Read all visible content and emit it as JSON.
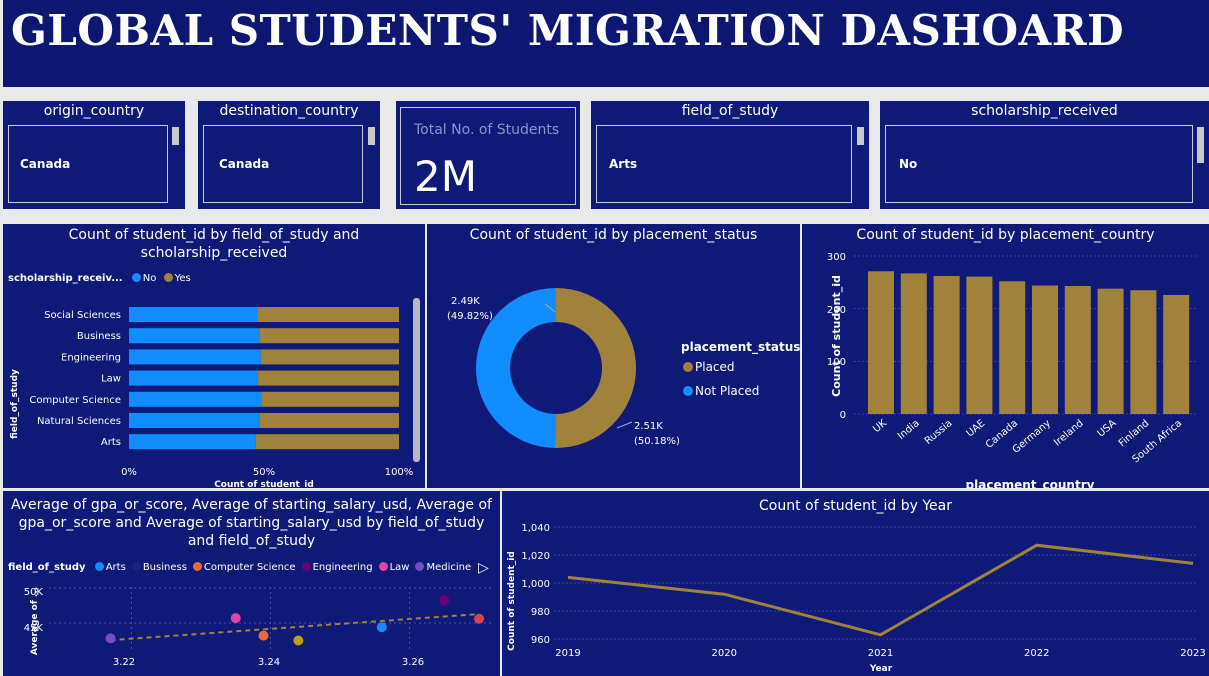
{
  "title": "GLOBAL STUDENTS' MIGRATION DASHOARD",
  "colors": {
    "blue": "#118dff",
    "gold": "#a1823a",
    "panel": "#0f1a78",
    "navy_dot": "#1a237e",
    "orange": "#e66c37",
    "purple": "#6b007b",
    "pink": "#e044a7",
    "violet": "#744ec2",
    "yellow": "#b9a10c",
    "red": "#d64550"
  },
  "slicers": {
    "origin": {
      "title": "origin_country",
      "value": "Canada"
    },
    "destination": {
      "title": "destination_country",
      "value": "Canada"
    },
    "field": {
      "title": "field_of_study",
      "value": "Arts"
    },
    "scholarship": {
      "title": "scholarship_received",
      "value": "No"
    }
  },
  "kpi": {
    "label": "Total No. of Students",
    "value": "2M"
  },
  "bar_chart": {
    "title_line1": "Count of student_id by field_of_study and",
    "title_line2": "scholarship_received",
    "legend_title": "scholarship_receiv...",
    "legend_no": "No",
    "legend_yes": "Yes",
    "ylabel": "field_of_study",
    "xlabel": "Count of student_id",
    "xticks": [
      "0%",
      "50%",
      "100%"
    ]
  },
  "donut_chart": {
    "title": "Count of student_id by placement_status",
    "legend_title": "placement_status",
    "legend_placed": "Placed",
    "legend_not_placed": "Not Placed",
    "label_not_placed_value": "2.49K",
    "label_not_placed_pct": "(49.82%)",
    "label_placed_value": "2.51K",
    "label_placed_pct": "(50.18%)"
  },
  "country_chart": {
    "title": "Count of student_id by placement_country",
    "ylabel": "Count of student_id",
    "xlabel": "placement_country",
    "yticks": [
      "0",
      "100",
      "200",
      "300"
    ]
  },
  "scatter_chart": {
    "title_line1": "Average of gpa_or_score, Average of starting_salary_usd, Average of",
    "title_line2": "gpa_or_score and Average of starting_salary_usd by field_of_study",
    "title_line3": "and field_of_study",
    "legend_title": "field_of_study",
    "legend": [
      "Arts",
      "Business",
      "Computer Science",
      "Engineering",
      "Law",
      "Medicine"
    ],
    "ylabel": "Average of ...",
    "yticks": [
      "50K",
      "45K"
    ],
    "xticks": [
      "3.22",
      "3.24",
      "3.26"
    ]
  },
  "year_chart": {
    "title": "Count of student_id by Year",
    "ylabel": "Count of student_id",
    "xlabel": "Year",
    "yticks": [
      "960",
      "980",
      "1,000",
      "1,020",
      "1,040"
    ],
    "xticks": [
      "2019",
      "2020",
      "2021",
      "2022",
      "2023"
    ]
  },
  "chart_data": [
    {
      "type": "bar",
      "orientation": "horizontal-100%-stacked",
      "categories": [
        "Social Sciences",
        "Business",
        "Engineering",
        "Law",
        "Computer Science",
        "Natural Sciences",
        "Arts"
      ],
      "series": [
        {
          "name": "No",
          "values": [
            47.5,
            48.5,
            48.8,
            47.8,
            49.0,
            48.5,
            47.0
          ]
        },
        {
          "name": "Yes",
          "values": [
            52.5,
            51.5,
            51.2,
            52.2,
            51.0,
            51.5,
            53.0
          ]
        }
      ],
      "xlim": [
        0,
        100
      ]
    },
    {
      "type": "pie",
      "donut": true,
      "categories": [
        "Placed",
        "Not Placed"
      ],
      "values": [
        2510,
        2490
      ],
      "percent": [
        50.18,
        49.82
      ]
    },
    {
      "type": "bar",
      "categories": [
        "UK",
        "India",
        "Russia",
        "UAE",
        "Canada",
        "Germany",
        "Ireland",
        "USA",
        "Finland",
        "South Africa"
      ],
      "values": [
        271,
        267,
        262,
        261,
        252,
        244,
        243,
        238,
        235,
        226
      ],
      "ylim": [
        0,
        300
      ]
    },
    {
      "type": "scatter",
      "x": [
        3.217,
        3.235,
        3.239,
        3.244,
        3.256,
        3.265,
        3.27
      ],
      "y": [
        42800,
        45700,
        43200,
        42500,
        44400,
        48200,
        45600
      ],
      "categories": [
        "",
        "",
        "Computer Science",
        "",
        "",
        "Engineering",
        ""
      ],
      "trendline": true,
      "xlim": [
        3.208,
        3.272
      ],
      "ylim": [
        41000,
        51000
      ]
    },
    {
      "type": "line",
      "x": [
        "2019",
        "2020",
        "2021",
        "2022",
        "2023"
      ],
      "values": [
        1004,
        992,
        963,
        1027,
        1014
      ],
      "ylim": [
        960,
        1040
      ]
    }
  ]
}
